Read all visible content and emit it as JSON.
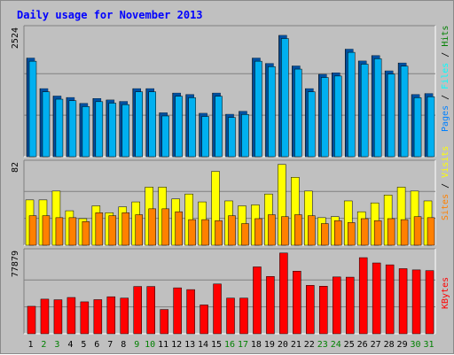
{
  "chart_data": {
    "type": "bar",
    "title": "Daily usage for November 2013",
    "categories": [
      "1",
      "2",
      "3",
      "4",
      "5",
      "6",
      "7",
      "8",
      "9",
      "10",
      "11",
      "12",
      "13",
      "14",
      "15",
      "16",
      "17",
      "18",
      "19",
      "20",
      "21",
      "22",
      "23",
      "24",
      "25",
      "26",
      "27",
      "28",
      "29",
      "30",
      "31"
    ],
    "weekend_days": [
      "2",
      "3",
      "9",
      "10",
      "16",
      "17",
      "23",
      "24",
      "30",
      "31"
    ],
    "colors": {
      "pages": "#0080ff",
      "files": "#00ffff",
      "hits": "#008000",
      "visits": "#ffff00",
      "sites": "#ff8000",
      "kbytes": "#ff0000",
      "title": "#0000ff",
      "weekend": "#008000",
      "weekday": "#000000"
    },
    "panels": [
      {
        "name": "top",
        "ymax_label": "2524",
        "ymax": 2524,
        "labels": [
          "Pages",
          "Files",
          "Hits"
        ],
        "series": [
          {
            "name": "Hits",
            "values": [
              2000,
              1380,
              1230,
              1200,
              1080,
              1180,
              1150,
              1120,
              1380,
              1380,
              890,
              1290,
              1260,
              880,
              1290,
              860,
              920,
              2000,
              1890,
              2460,
              1840,
              1380,
              1670,
              1700,
              2180,
              1940,
              2050,
              1740,
              1900,
              1260,
              1280
            ]
          },
          {
            "name": "Files",
            "values": [
              1990,
              1370,
              1220,
              1190,
              1070,
              1170,
              1140,
              1110,
              1370,
              1370,
              880,
              1280,
              1250,
              870,
              1280,
              850,
              910,
              1990,
              1880,
              2450,
              1830,
              1370,
              1660,
              1690,
              2170,
              1930,
              2040,
              1730,
              1890,
              1250,
              1270
            ]
          },
          {
            "name": "Pages",
            "values": [
              0,
              0,
              0,
              0,
              0,
              0,
              0,
              0,
              0,
              0,
              0,
              0,
              0,
              0,
              0,
              0,
              0,
              0,
              0,
              0,
              0,
              0,
              0,
              0,
              0,
              0,
              0,
              0,
              0,
              0,
              0
            ]
          }
        ]
      },
      {
        "name": "middle",
        "ymax_label": "82",
        "ymax": 82,
        "labels": [
          "Sites",
          "Visits"
        ],
        "series": [
          {
            "name": "Visits",
            "values": [
              46,
              46,
              55,
              35,
              27,
              40,
              33,
              39,
              44,
              59,
              59,
              47,
              52,
              44,
              75,
              45,
              40,
              41,
              52,
              82,
              69,
              55,
              28,
              29,
              45,
              34,
              43,
              51,
              59,
              55,
              45
            ]
          },
          {
            "name": "Sites",
            "values": [
              30,
              30,
              28,
              28,
              24,
              33,
              30,
              33,
              31,
              37,
              37,
              34,
              26,
              26,
              25,
              30,
              22,
              27,
              31,
              29,
              31,
              30,
              22,
              25,
              23,
              27,
              25,
              27,
              26,
              29,
              28
            ]
          }
        ]
      },
      {
        "name": "bottom",
        "ymax_label": "77879",
        "ymax": 77879,
        "labels": [
          "KBytes"
        ],
        "series": [
          {
            "name": "KBytes",
            "values": [
              26500,
              33400,
              32800,
              35000,
              30800,
              32900,
              35700,
              34400,
              45600,
              45600,
              23400,
              44300,
              42600,
              27800,
              48000,
              34400,
              34400,
              64500,
              55300,
              77879,
              60400,
              46700,
              45900,
              54800,
              54600,
              73400,
              68300,
              66500,
              62800,
              61600,
              60900
            ]
          }
        ]
      }
    ]
  }
}
